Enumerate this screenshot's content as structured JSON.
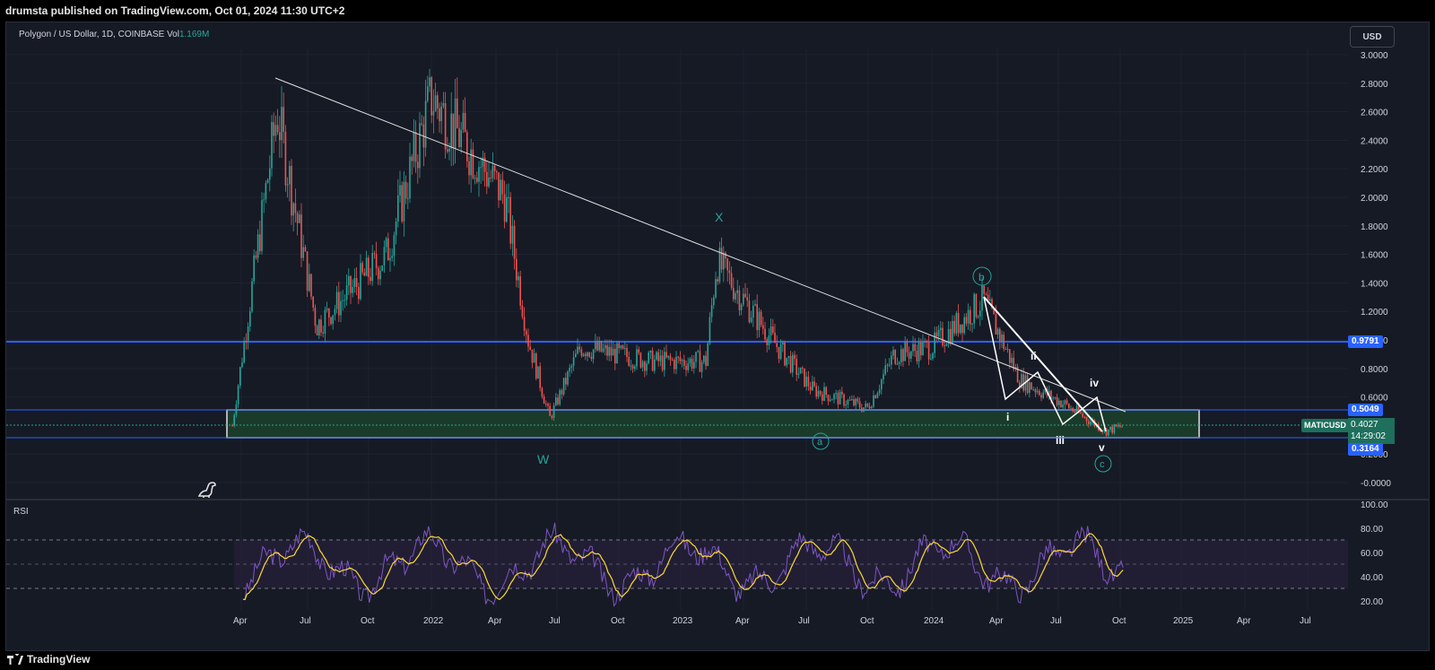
{
  "header": {
    "published_text": "drumsta published on TradingView.com, Oct 01, 2024 11:30 UTC+2"
  },
  "legend": {
    "symbol_text": "Polygon / US Dollar, 1D, COINBASE  Vol",
    "volume": "1.169M"
  },
  "currency_button": "USD",
  "rsi_label": "RSI",
  "brand": "TradingView",
  "price_axis": {
    "ticks": [
      "3.0000",
      "2.8000",
      "2.6000",
      "2.4000",
      "2.2000",
      "2.0000",
      "1.8000",
      "1.6000",
      "1.4000",
      "1.2000",
      "1.0000",
      "0.8000",
      "0.6000",
      "0.2000",
      "-0.0000"
    ],
    "tags": [
      {
        "value": "0.9791",
        "color": "#2962ff"
      },
      {
        "value": "0.5049",
        "color": "#2962ff"
      },
      {
        "value": "0.3164",
        "color": "#2962ff"
      }
    ],
    "symbol": "MATICUSD",
    "last_price": "0.4027",
    "countdown": "14:29:02"
  },
  "rsi_axis": {
    "ticks": [
      "100.00",
      "80.00",
      "60.00",
      "40.00",
      "20.00"
    ]
  },
  "time_axis": {
    "ticks": [
      "Apr",
      "Jul",
      "Oct",
      "2022",
      "Apr",
      "Jul",
      "Oct",
      "2023",
      "Apr",
      "Jul",
      "Oct",
      "2024",
      "Apr",
      "Jul",
      "Oct",
      "2025",
      "Apr",
      "Jul"
    ]
  },
  "wave_labels": {
    "W": "W",
    "X": "X",
    "a": "a",
    "b": "b",
    "c": "c",
    "i": "i",
    "ii": "ii",
    "iii": "iii",
    "iv": "iv",
    "v": "v"
  },
  "colors": {
    "up": "#26a69a",
    "down": "#ef5350",
    "rsi_line": "#7e57c2",
    "rsi_ma": "#fdd835",
    "level": "#2962ff",
    "box_fill": "#1b3b2a"
  },
  "chart_data": {
    "type": "line",
    "title": "Polygon / US Dollar, 1D, COINBASE",
    "x": [
      "2021-04",
      "2021-06",
      "2021-08",
      "2021-10",
      "2021-12",
      "2022-03",
      "2022-05",
      "2022-06",
      "2022-08",
      "2022-11",
      "2023-01",
      "2023-02",
      "2023-05",
      "2023-06",
      "2023-09",
      "2023-11",
      "2024-01",
      "2024-03",
      "2024-05",
      "2024-07",
      "2024-09",
      "2024-10"
    ],
    "series": [
      {
        "name": "MATICUSD",
        "values": [
          0.4,
          2.6,
          1.1,
          1.6,
          2.7,
          2.0,
          1.0,
          0.45,
          0.95,
          0.85,
          0.85,
          1.55,
          0.95,
          0.65,
          0.52,
          0.9,
          0.95,
          1.28,
          0.72,
          0.55,
          0.36,
          0.4
        ]
      }
    ],
    "ylim": [
      0,
      3
    ],
    "levels": [
      0.9791,
      0.5049,
      0.3164
    ]
  }
}
